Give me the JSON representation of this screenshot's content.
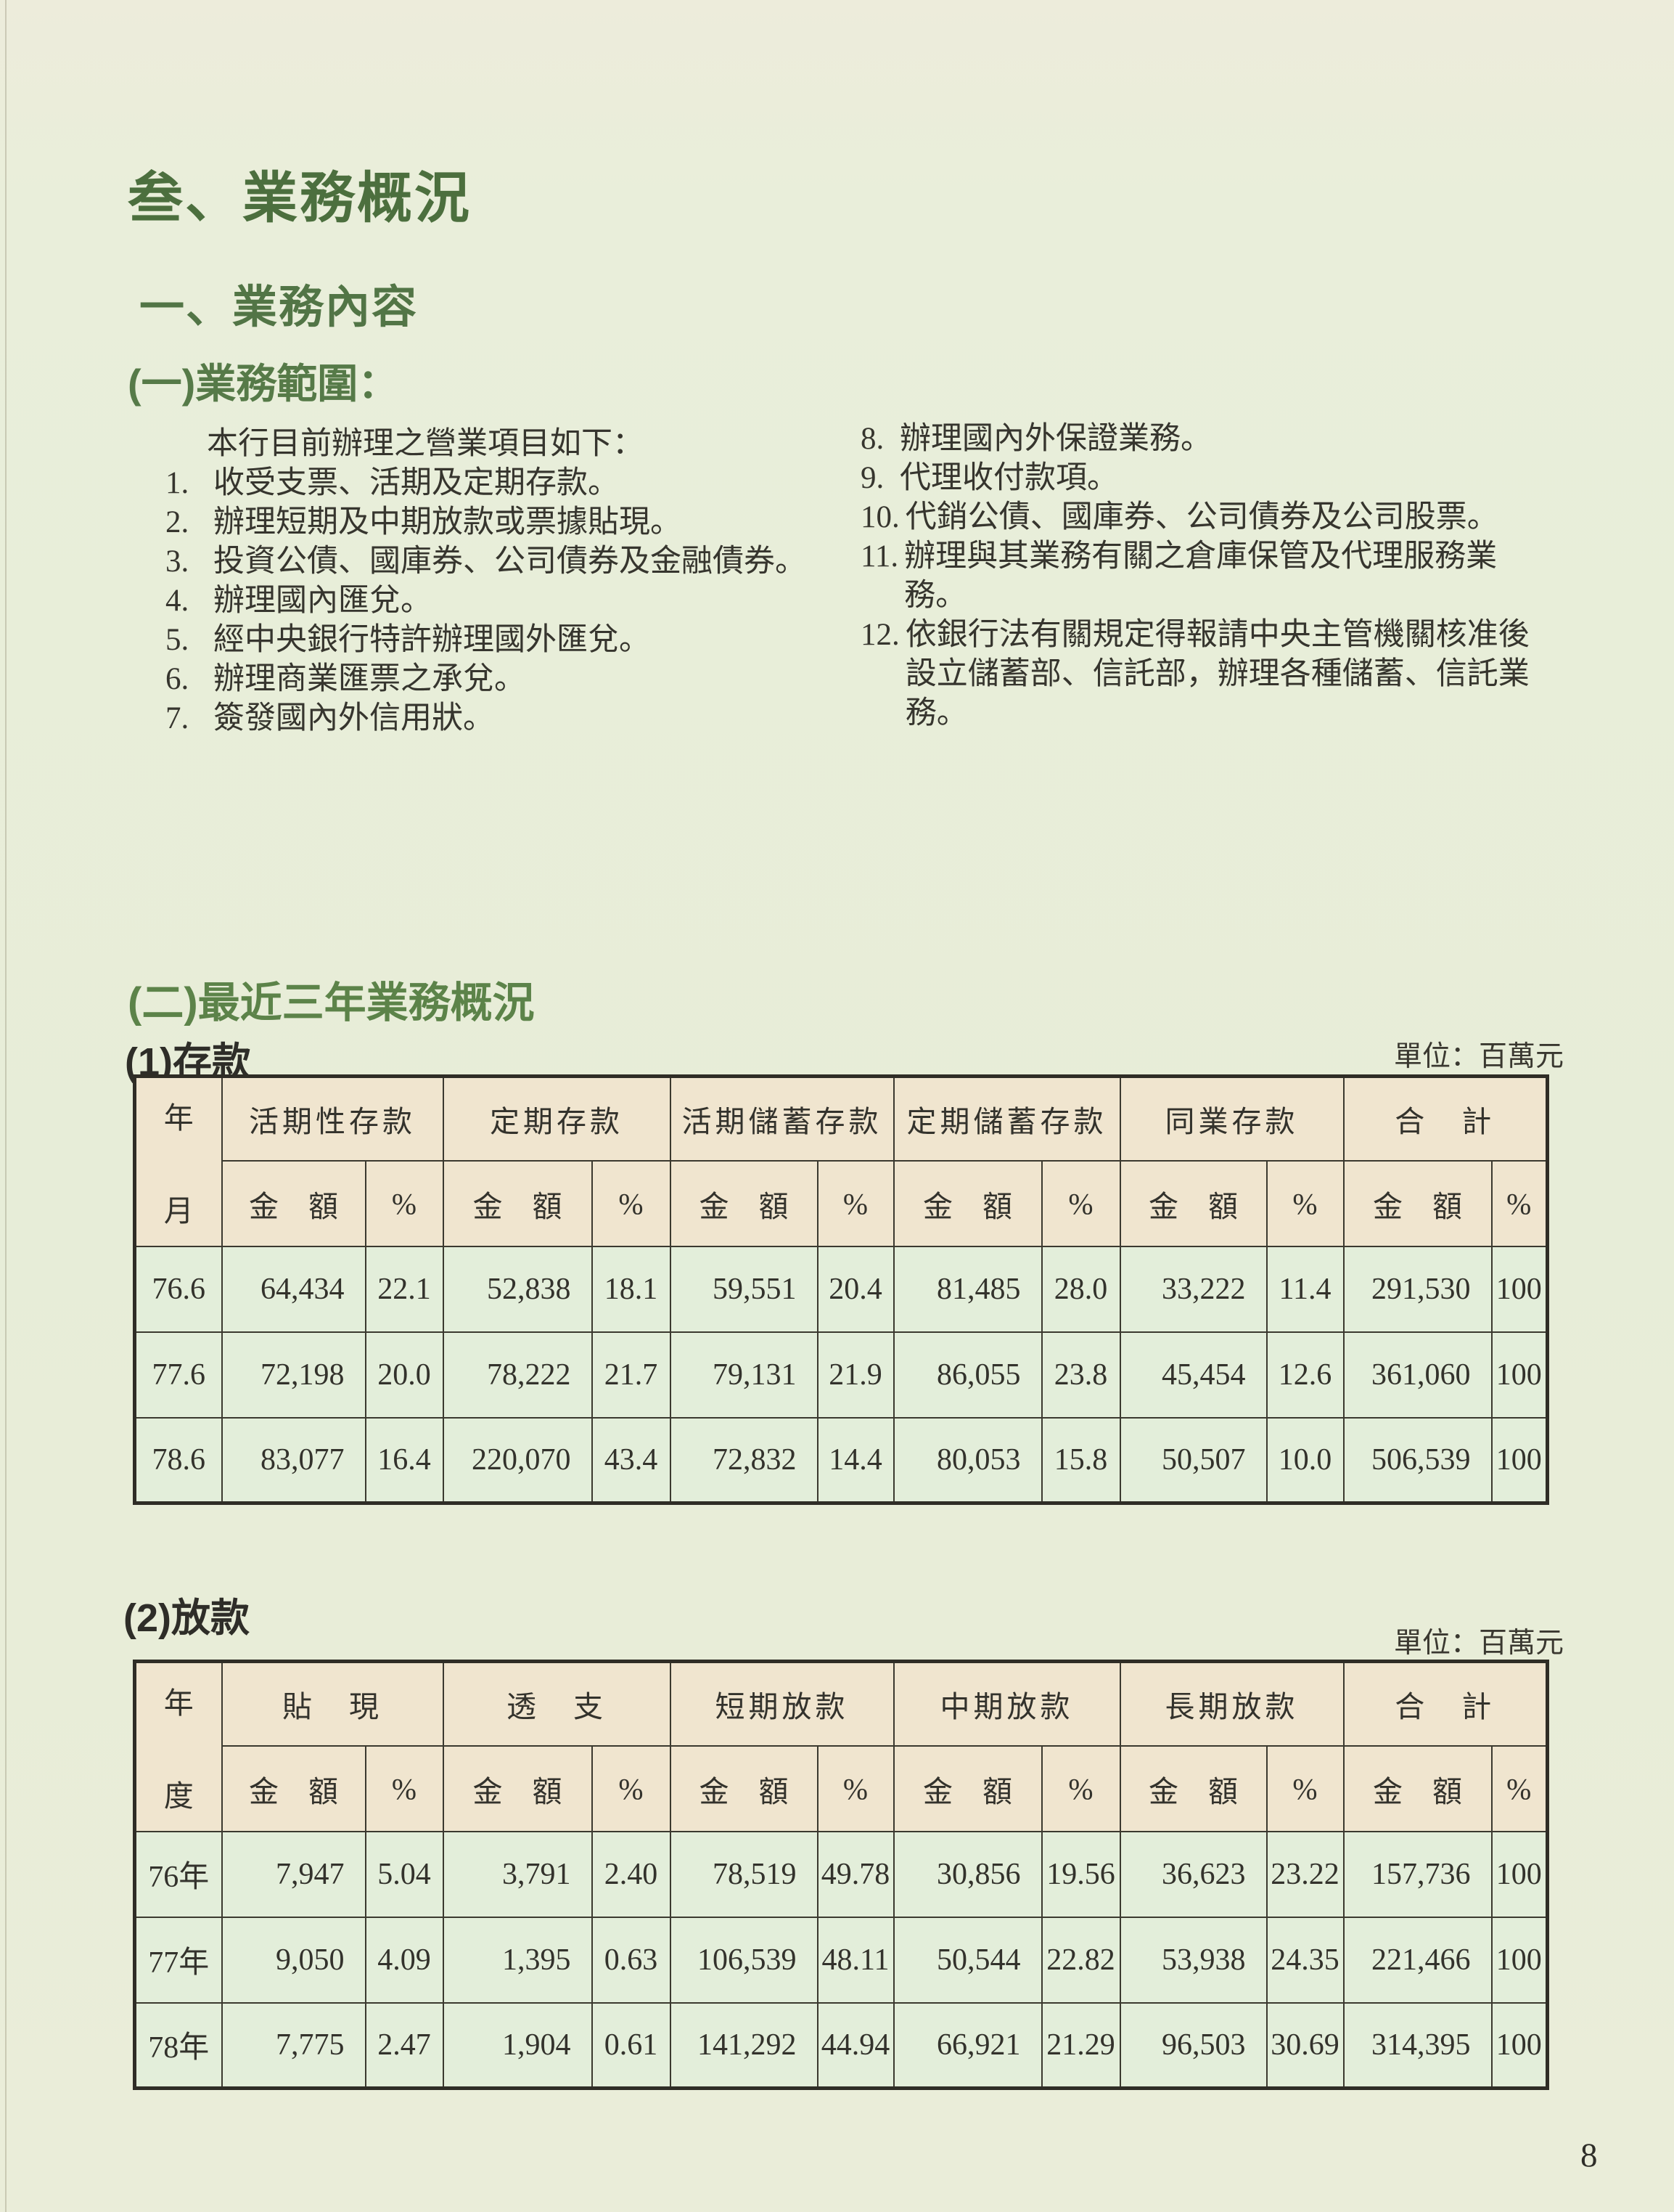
{
  "page": {
    "number": "8"
  },
  "section": {
    "title": "叁、業務概況",
    "subtitle": "一、業務內容",
    "scope_heading": "(一)業務範圍：",
    "intro": "本行目前辦理之營業項目如下：",
    "recent_heading": "(二)最近三年業務概況"
  },
  "business_items": {
    "left": [
      {
        "no": "1.",
        "text": "收受支票、活期及定期存款。"
      },
      {
        "no": "2.",
        "text": "辦理短期及中期放款或票據貼現。"
      },
      {
        "no": "3.",
        "text": "投資公債、國庫券、公司債券及金融債券。"
      },
      {
        "no": "4.",
        "text": "辦理國內匯兌。"
      },
      {
        "no": "5.",
        "text": "經中央銀行特許辦理國外匯兌。"
      },
      {
        "no": "6.",
        "text": "辦理商業匯票之承兌。"
      },
      {
        "no": "7.",
        "text": "簽發國內外信用狀。"
      }
    ],
    "right": [
      {
        "no": "8.",
        "text": "辦理國內外保證業務。"
      },
      {
        "no": "9.",
        "text": "代理收付款項。"
      },
      {
        "no": "10.",
        "text": "代銷公債、國庫券、公司債券及公司股票。"
      },
      {
        "no": "11.",
        "text": "辦理與其業務有關之倉庫保管及代理服務業務。"
      },
      {
        "no": "12.",
        "text": "依銀行法有關規定得報請中央主管機關核准後設立儲蓄部、信託部，辦理各種儲蓄、信託業務。"
      }
    ]
  },
  "tables": [
    {
      "id": "deposits",
      "caption": "(1)存款",
      "unit": "單位：百萬元",
      "row_header": [
        "年",
        "月"
      ],
      "groups": [
        "活期性存款",
        "定期存款",
        "活期儲蓄存款",
        "定期儲蓄存款",
        "同業存款",
        "合　計"
      ],
      "sub_headers": [
        "金　額",
        "%"
      ],
      "rows": [
        [
          "76.6",
          "64,434",
          "22.1",
          "52,838",
          "18.1",
          "59,551",
          "20.4",
          "81,485",
          "28.0",
          "33,222",
          "11.4",
          "291,530",
          "100"
        ],
        [
          "77.6",
          "72,198",
          "20.0",
          "78,222",
          "21.7",
          "79,131",
          "21.9",
          "86,055",
          "23.8",
          "45,454",
          "12.6",
          "361,060",
          "100"
        ],
        [
          "78.6",
          "83,077",
          "16.4",
          "220,070",
          "43.4",
          "72,832",
          "14.4",
          "80,053",
          "15.8",
          "50,507",
          "10.0",
          "506,539",
          "100"
        ]
      ]
    },
    {
      "id": "loans",
      "caption": "(2)放款",
      "unit": "單位：百萬元",
      "row_header": [
        "年",
        "度"
      ],
      "groups": [
        "貼　現",
        "透　支",
        "短期放款",
        "中期放款",
        "長期放款",
        "合　計"
      ],
      "sub_headers": [
        "金　額",
        "%"
      ],
      "rows": [
        [
          "76年",
          "7,947",
          "5.04",
          "3,791",
          "2.40",
          "78,519",
          "49.78",
          "30,856",
          "19.56",
          "36,623",
          "23.22",
          "157,736",
          "100"
        ],
        [
          "77年",
          "9,050",
          "4.09",
          "1,395",
          "0.63",
          "106,539",
          "48.11",
          "50,544",
          "22.82",
          "53,938",
          "24.35",
          "221,466",
          "100"
        ],
        [
          "78年",
          "7,775",
          "2.47",
          "1,904",
          "0.61",
          "141,292",
          "44.94",
          "66,921",
          "21.29",
          "96,503",
          "30.69",
          "314,395",
          "100"
        ]
      ]
    }
  ]
}
